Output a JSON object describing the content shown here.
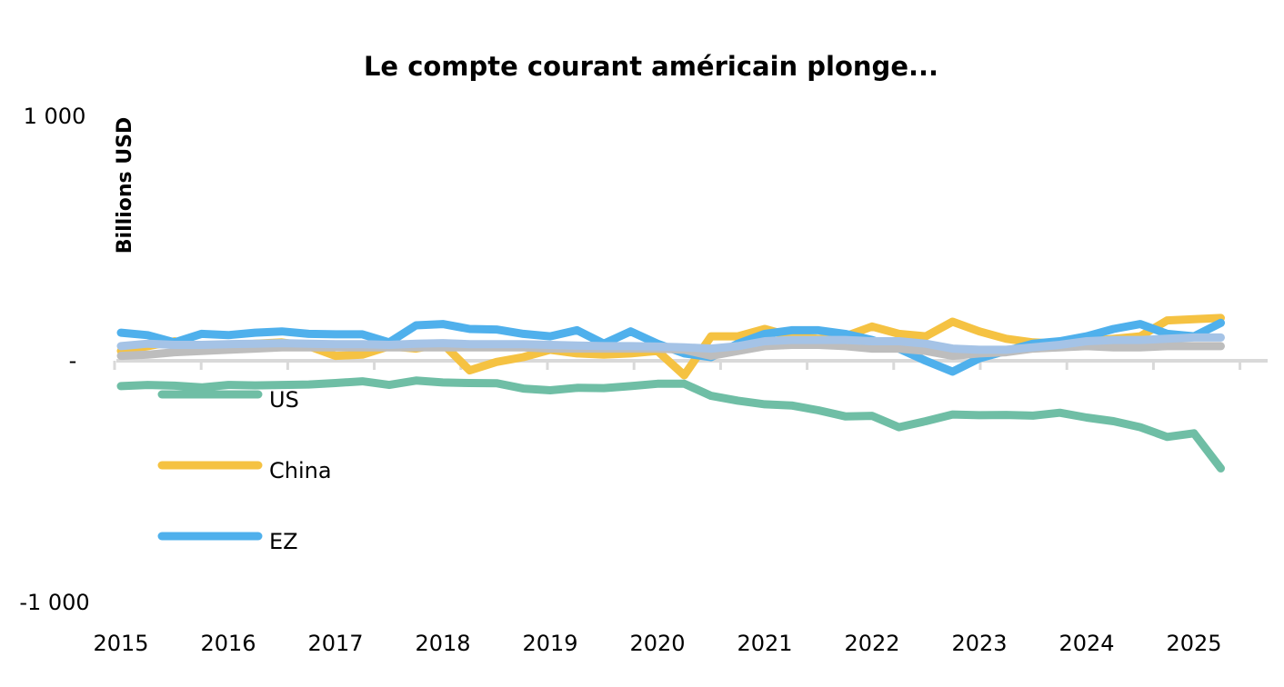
{
  "chart_data": {
    "type": "line",
    "title": "Le compte courant américain plonge...",
    "ylabel": "Billions USD",
    "xlabel": "",
    "ylim": [
      -1000,
      1000
    ],
    "y_ticks": [
      {
        "value": 1000,
        "label": "1 000"
      },
      {
        "value": 0,
        "label": "-"
      },
      {
        "value": -1000,
        "label": "-1 000"
      }
    ],
    "x_tick_labels": [
      "2015",
      "2016",
      "2017",
      "2018",
      "2019",
      "2020",
      "2021",
      "2022",
      "2023",
      "2024",
      "2025"
    ],
    "x_start": 2015,
    "x_step": 0.25,
    "frequency": "quarterly",
    "grid": false,
    "legend_position": "left-inside",
    "series": [
      {
        "name": "US",
        "color": "#6fbea5",
        "values": [
          -105,
          -100,
          -103,
          -110,
          -100,
          -102,
          -100,
          -98,
          -92,
          -85,
          -100,
          -82,
          -90,
          -92,
          -93,
          -115,
          -122,
          -112,
          -113,
          -105,
          -95,
          -95,
          -145,
          -165,
          -180,
          -185,
          -205,
          -230,
          -228,
          -275,
          -250,
          -222,
          -225,
          -224,
          -227,
          -215,
          -235,
          -250,
          -275,
          -315,
          -300,
          -445
        ]
      },
      {
        "name": "China",
        "color": "#f5c242",
        "values": [
          40,
          60,
          80,
          50,
          60,
          70,
          75,
          60,
          20,
          25,
          60,
          50,
          70,
          -40,
          -5,
          15,
          45,
          30,
          25,
          30,
          40,
          -60,
          100,
          100,
          130,
          100,
          90,
          100,
          140,
          110,
          100,
          160,
          120,
          90,
          75,
          70,
          80,
          90,
          100,
          165,
          170,
          175
        ]
      },
      {
        "name": "EZ",
        "color": "#4fb0ec",
        "values": [
          115,
          105,
          75,
          110,
          105,
          115,
          120,
          110,
          108,
          108,
          75,
          145,
          150,
          130,
          128,
          110,
          100,
          125,
          70,
          120,
          70,
          30,
          15,
          70,
          110,
          125,
          125,
          110,
          85,
          50,
          0,
          -45,
          10,
          40,
          70,
          80,
          100,
          130,
          150,
          110,
          100,
          155
        ]
      },
      {
        "color": "#bdbdbd",
        "values": [
          20,
          25,
          35,
          40,
          45,
          50,
          55,
          55,
          55,
          55,
          55,
          55,
          55,
          55,
          55,
          55,
          50,
          50,
          50,
          50,
          50,
          45,
          20,
          40,
          60,
          65,
          65,
          60,
          50,
          50,
          40,
          20,
          30,
          35,
          50,
          55,
          60,
          55,
          55,
          60,
          60,
          60
        ]
      },
      {
        "color": "#a5c3e6",
        "values": [
          60,
          70,
          65,
          65,
          68,
          70,
          72,
          70,
          68,
          68,
          65,
          70,
          72,
          68,
          68,
          68,
          65,
          62,
          60,
          60,
          58,
          55,
          50,
          60,
          80,
          85,
          85,
          85,
          80,
          80,
          70,
          50,
          45,
          45,
          55,
          65,
          80,
          85,
          85,
          90,
          95,
          95
        ]
      }
    ]
  }
}
